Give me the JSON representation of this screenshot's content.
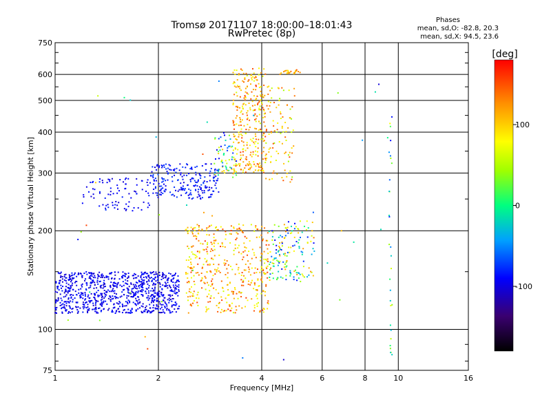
{
  "chart_data": {
    "type": "scatter",
    "title": "Tromsø 20171107 18:00:00–18:01:43",
    "subtitle": "RwPretec (8p)",
    "xlabel": "Frequency [MHz]",
    "ylabel": "Stationary phase Virtual Height [km]",
    "x_scale": "log2",
    "y_scale": "log",
    "xlim": [
      1,
      16
    ],
    "ylim": [
      75,
      750
    ],
    "x_ticks": [
      1,
      2,
      4,
      6,
      8,
      10,
      16
    ],
    "y_ticks": [
      75,
      100,
      200,
      300,
      400,
      500,
      600,
      750
    ],
    "grid": true,
    "stats": {
      "heading": "Phases",
      "line_o": "mean, sd,O: -82.8, 20.3",
      "line_x": "mean, sd,X:  94.5, 23.6"
    },
    "colorbar": {
      "label": "[deg]",
      "ticks": [
        100,
        0,
        -100
      ],
      "range": [
        -180,
        180
      ]
    },
    "clusters": [
      {
        "x": [
          1.0,
          2.3
        ],
        "y": [
          112,
          150
        ],
        "phase": [
          -110,
          -80
        ],
        "density": 900
      },
      {
        "x": [
          1.2,
          1.9
        ],
        "y": [
          230,
          290
        ],
        "phase": [
          -105,
          -80
        ],
        "density": 90
      },
      {
        "x": [
          1.9,
          3.0
        ],
        "y": [
          250,
          320
        ],
        "phase": [
          -105,
          -70
        ],
        "density": 220
      },
      {
        "x": [
          2.9,
          3.4
        ],
        "y": [
          290,
          400
        ],
        "phase": [
          -100,
          120
        ],
        "density": 70
      },
      {
        "x": [
          3.3,
          4.1
        ],
        "y": [
          300,
          630
        ],
        "phase": [
          60,
          160
        ],
        "density": 300
      },
      {
        "x": [
          4.1,
          5.0
        ],
        "y": [
          280,
          560
        ],
        "phase": [
          40,
          150
        ],
        "density": 100
      },
      {
        "x": [
          2.4,
          4.2
        ],
        "y": [
          112,
          210
        ],
        "phase": [
          60,
          160
        ],
        "density": 450
      },
      {
        "x": [
          4.2,
          5.7
        ],
        "y": [
          140,
          215
        ],
        "phase": [
          -100,
          140
        ],
        "density": 160
      },
      {
        "x": [
          4.5,
          5.2
        ],
        "y": [
          600,
          620
        ],
        "phase": [
          80,
          150
        ],
        "density": 25
      },
      {
        "x": [
          9.4,
          9.6
        ],
        "y": [
          80,
          500
        ],
        "phase": [
          -110,
          80
        ],
        "density": 30
      },
      {
        "x": [
          1.0,
          9.5
        ],
        "y": [
          78,
          600
        ],
        "phase": [
          -110,
          160
        ],
        "density": 40
      }
    ]
  }
}
